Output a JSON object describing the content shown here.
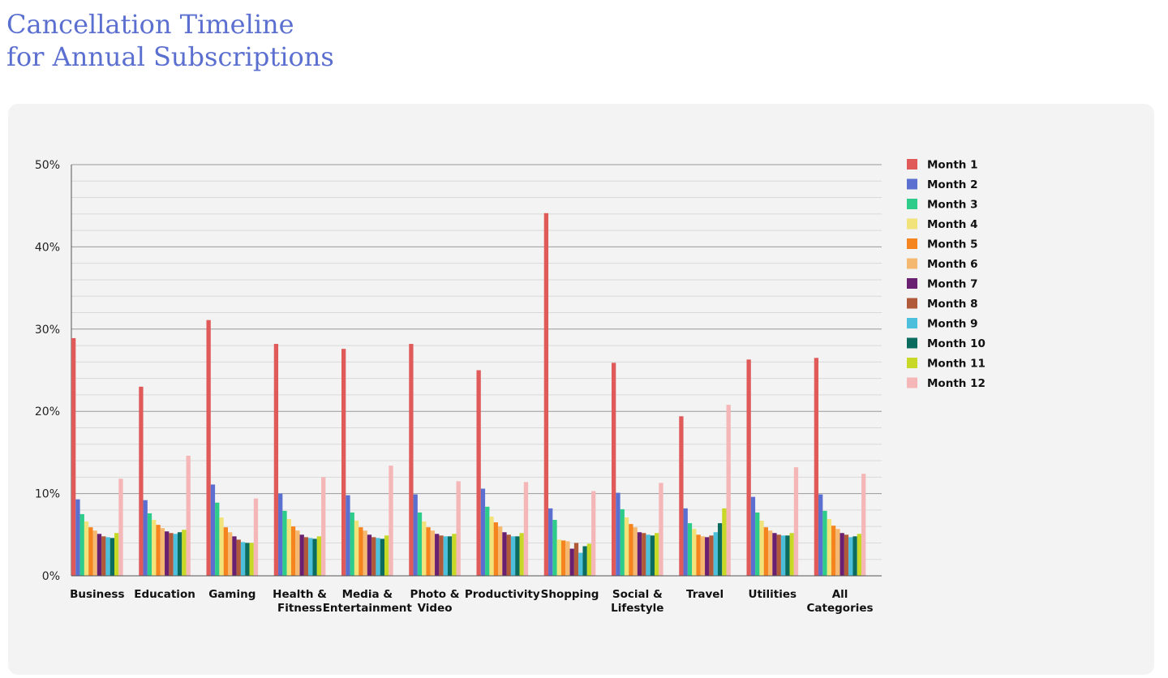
{
  "header": {
    "title_line1": "Cancellation Timeline",
    "title_line2": "for Annual Subscriptions"
  },
  "chart_data": {
    "type": "bar",
    "ylim": [
      0,
      50
    ],
    "yticks": [
      "0%",
      "10%",
      "20%",
      "30%",
      "40%",
      "50%"
    ],
    "ytick_values": [
      0,
      10,
      20,
      30,
      40,
      50
    ],
    "grid": true,
    "legend_position": "right",
    "categories": [
      [
        "Business"
      ],
      [
        "Education"
      ],
      [
        "Gaming"
      ],
      [
        "Health &",
        "Fitness"
      ],
      [
        "Media &",
        "Entertainment"
      ],
      [
        "Photo &",
        "Video"
      ],
      [
        "Productivity"
      ],
      [
        "Shopping"
      ],
      [
        "Social &",
        "Lifestyle"
      ],
      [
        "Travel"
      ],
      [
        "Utilities"
      ],
      [
        "All",
        "Categories"
      ]
    ],
    "series": [
      {
        "name": "Month 1",
        "color": "#e05a5a",
        "values": [
          28.9,
          23.0,
          31.1,
          28.2,
          27.6,
          28.2,
          25.0,
          44.1,
          25.9,
          19.4,
          26.3,
          26.5
        ]
      },
      {
        "name": "Month 2",
        "color": "#5a6fd0",
        "values": [
          9.3,
          9.2,
          11.1,
          10.0,
          9.8,
          9.9,
          10.6,
          8.2,
          10.1,
          8.2,
          9.6,
          9.9
        ]
      },
      {
        "name": "Month 3",
        "color": "#2ecc8a",
        "values": [
          7.5,
          7.6,
          8.9,
          7.9,
          7.7,
          7.7,
          8.4,
          6.8,
          8.1,
          6.4,
          7.7,
          7.9
        ]
      },
      {
        "name": "Month 4",
        "color": "#f2e27a",
        "values": [
          6.6,
          6.8,
          7.1,
          6.9,
          6.7,
          6.6,
          7.2,
          4.4,
          7.1,
          5.7,
          6.7,
          6.9
        ]
      },
      {
        "name": "Month 5",
        "color": "#f5841f",
        "values": [
          5.9,
          6.2,
          5.9,
          6.0,
          5.9,
          5.9,
          6.5,
          4.3,
          6.3,
          5.0,
          5.9,
          6.1
        ]
      },
      {
        "name": "Month 6",
        "color": "#f5b870",
        "values": [
          5.5,
          5.8,
          5.3,
          5.5,
          5.5,
          5.5,
          6.0,
          4.2,
          5.9,
          4.8,
          5.5,
          5.7
        ]
      },
      {
        "name": "Month 7",
        "color": "#6a2070",
        "values": [
          5.1,
          5.4,
          4.8,
          5.0,
          5.0,
          5.1,
          5.3,
          3.3,
          5.3,
          4.7,
          5.2,
          5.2
        ]
      },
      {
        "name": "Month 8",
        "color": "#b05a3a",
        "values": [
          4.8,
          5.2,
          4.4,
          4.7,
          4.7,
          4.9,
          5.0,
          4.0,
          5.2,
          4.9,
          5.0,
          5.0
        ]
      },
      {
        "name": "Month 9",
        "color": "#4bbfdc",
        "values": [
          4.7,
          5.1,
          4.1,
          4.6,
          4.6,
          4.8,
          4.8,
          2.8,
          5.0,
          5.3,
          4.9,
          4.7
        ]
      },
      {
        "name": "Month 10",
        "color": "#0a6b5e",
        "values": [
          4.6,
          5.3,
          4.0,
          4.5,
          4.5,
          4.8,
          4.8,
          3.6,
          4.9,
          6.4,
          4.9,
          4.8
        ]
      },
      {
        "name": "Month 11",
        "color": "#c8d826",
        "values": [
          5.2,
          5.6,
          4.0,
          4.8,
          4.9,
          5.1,
          5.2,
          3.9,
          5.2,
          8.2,
          5.2,
          5.1
        ]
      },
      {
        "name": "Month 12",
        "color": "#f4b6b6",
        "values": [
          11.8,
          14.6,
          9.4,
          12.0,
          13.4,
          11.5,
          11.4,
          10.3,
          11.3,
          20.8,
          13.2,
          12.4
        ]
      }
    ]
  }
}
